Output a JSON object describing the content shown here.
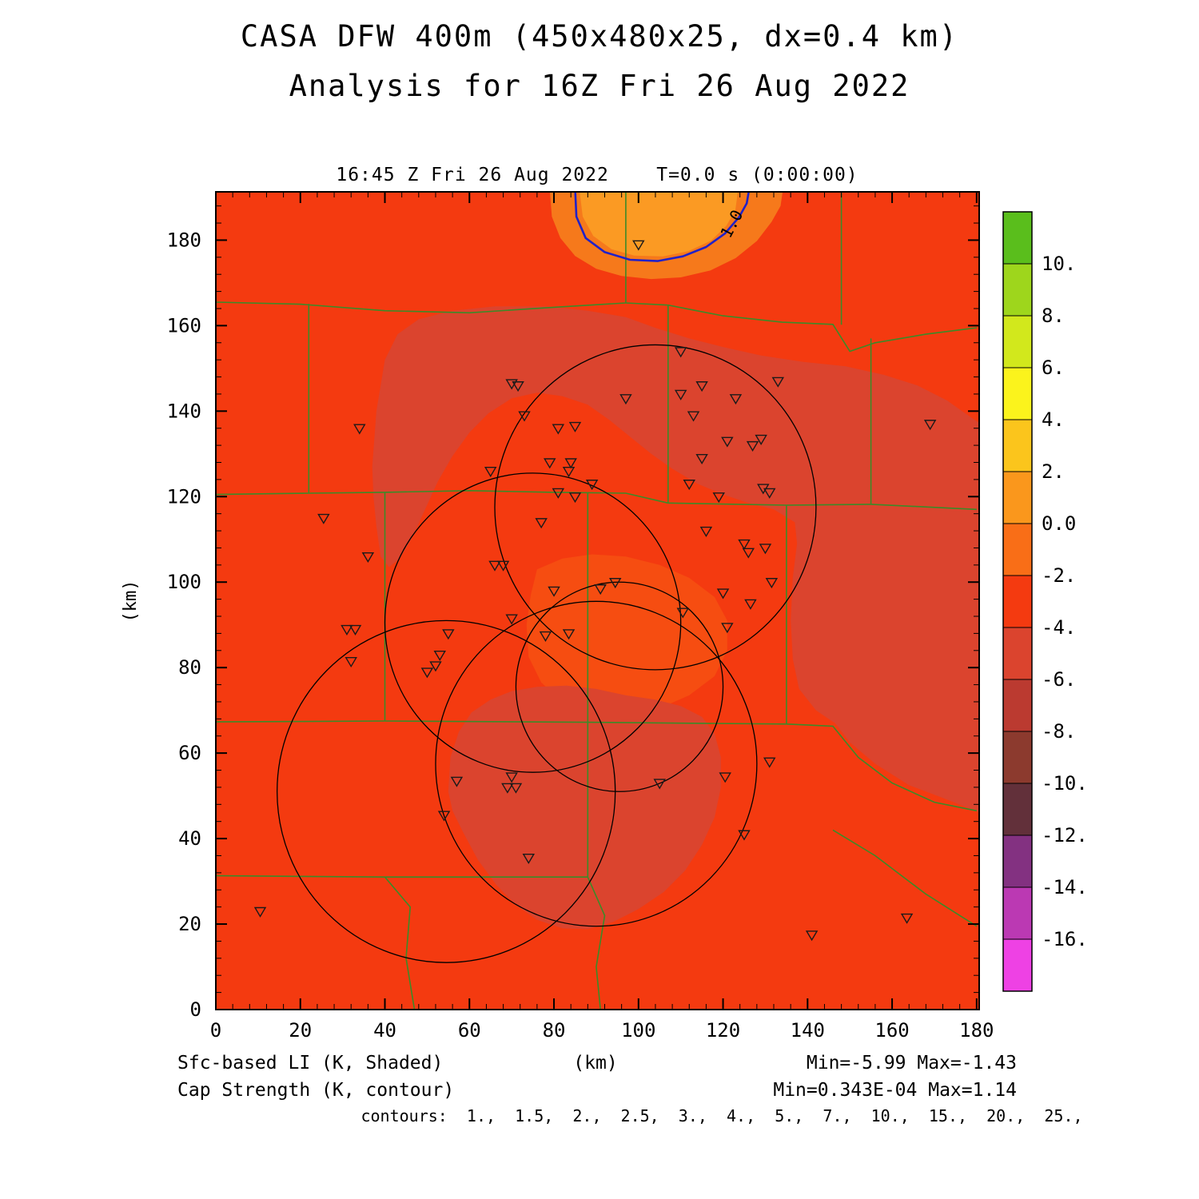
{
  "window": {
    "background": "#ffffff"
  },
  "chart_data": {
    "type": "heatmap",
    "title": "CASA DFW 400m (450x480x25, dx=0.4 km)",
    "subtitle": "Analysis for 16Z Fri 26 Aug 2022",
    "header": "16:45 Z Fri 26 Aug 2022    T=0.0 s (0:00:00)",
    "xlabel": "(km)",
    "ylabel": "(km)",
    "xlim": [
      0,
      180
    ],
    "ylim": [
      0,
      191
    ],
    "grid": false,
    "xticks": [
      0,
      20,
      40,
      60,
      80,
      100,
      120,
      140,
      160,
      180
    ],
    "yticks": [
      0,
      20,
      40,
      60,
      80,
      100,
      120,
      140,
      160,
      180
    ],
    "shaded_field": {
      "name": "Sfc-based LI (K, Shaded)",
      "min": -5.99,
      "max": -1.43
    },
    "contour_field": {
      "name": "Cap Strength (K, contour)",
      "min": "0.343E-04",
      "max": 1.14,
      "levels": [
        1.0,
        1.5,
        2.0,
        2.5,
        3.0,
        4.0,
        5.0,
        7.0,
        10.0,
        15.0,
        20.0,
        25.0
      ]
    },
    "footer": {
      "shaded": "Sfc-based LI (K, Shaded)",
      "shaded_minmax": "Min=-5.99 Max=-1.43",
      "contour": "Cap Strength (K, contour)",
      "contour_minmax": "Min=0.343E-04 Max=1.14",
      "contour_levels": "contours:  1.,  1.5,  2.,  2.5,  3.,  4.,  5.,  7.,  10.,  15.,  20.,  25.,"
    },
    "colorbar": {
      "position": "right",
      "labels": [
        "10.",
        "8.",
        "6.",
        "4.",
        "2.",
        "0.0",
        "-2.",
        "-4.",
        "-6.",
        "-8.",
        "-10.",
        "-12.",
        "-14.",
        "-16."
      ],
      "colors": [
        "#5ABE1C",
        "#9ED61C",
        "#D2E81C",
        "#FBF31C",
        "#FBC51C",
        "#FA971C",
        "#F96E17",
        "#F43A10",
        "#DB442E",
        "#BB3A30",
        "#8C3A2E",
        "#62303A",
        "#833181",
        "#BB39B3",
        "#EE41E4"
      ]
    },
    "colors": {
      "base": "#F43A10",
      "dark": "#DB442E",
      "center_warm": "#F64D11",
      "orange_outer": "#F6791B",
      "orange_inner": "#FB9A23",
      "county": "#3C8A28",
      "contour_blue": "#2121C8",
      "frame": "#000000"
    },
    "regions": {
      "dark_upper": [
        [
          37,
          127
        ],
        [
          38,
          140
        ],
        [
          40,
          152
        ],
        [
          43,
          158
        ],
        [
          48,
          161.5
        ],
        [
          56,
          163.5
        ],
        [
          66,
          164.5
        ],
        [
          78,
          164.5
        ],
        [
          88,
          163.5
        ],
        [
          97,
          162
        ],
        [
          104,
          159.5
        ],
        [
          112,
          157
        ],
        [
          120,
          155
        ],
        [
          129,
          153
        ],
        [
          139,
          151.5
        ],
        [
          149,
          150.5
        ],
        [
          158,
          148.5
        ],
        [
          166,
          146
        ],
        [
          173,
          142.5
        ],
        [
          178,
          139
        ],
        [
          181,
          137
        ],
        [
          181,
          46
        ],
        [
          172,
          49.5
        ],
        [
          164,
          52.5
        ],
        [
          156,
          57.5
        ],
        [
          150,
          62.5
        ],
        [
          146.5,
          67
        ],
        [
          142,
          70
        ],
        [
          138,
          75
        ],
        [
          136.5,
          82
        ],
        [
          136,
          91
        ],
        [
          136.5,
          101
        ],
        [
          137.5,
          109
        ],
        [
          137,
          114
        ],
        [
          132,
          117
        ],
        [
          126,
          118.5
        ],
        [
          120,
          120.5
        ],
        [
          114,
          123
        ],
        [
          108,
          126.5
        ],
        [
          103,
          130
        ],
        [
          98,
          134
        ],
        [
          93,
          138
        ],
        [
          88,
          141.5
        ],
        [
          82,
          143.5
        ],
        [
          76,
          144.3
        ],
        [
          70,
          143
        ],
        [
          64.5,
          139.5
        ],
        [
          60,
          135
        ],
        [
          56,
          129.5
        ],
        [
          52.5,
          123.5
        ],
        [
          49.5,
          117
        ],
        [
          46.5,
          110.5
        ],
        [
          43.5,
          105.5
        ],
        [
          41,
          103.5
        ],
        [
          39,
          106
        ],
        [
          38,
          113
        ],
        [
          37.3,
          120
        ]
      ],
      "dark_lower": [
        [
          55,
          51
        ],
        [
          55.5,
          59
        ],
        [
          57.5,
          65
        ],
        [
          60.5,
          69.5
        ],
        [
          65,
          72.5
        ],
        [
          70,
          74.5
        ],
        [
          76,
          75.5
        ],
        [
          83,
          75.8
        ],
        [
          90,
          75
        ],
        [
          97,
          73.5
        ],
        [
          104,
          72.5
        ],
        [
          110,
          71
        ],
        [
          115,
          68.5
        ],
        [
          118,
          64.5
        ],
        [
          119.5,
          59
        ],
        [
          119.5,
          52
        ],
        [
          118,
          45
        ],
        [
          115,
          38.5
        ],
        [
          111,
          32.5
        ],
        [
          106,
          27.5
        ],
        [
          100,
          23.5
        ],
        [
          94,
          20.5
        ],
        [
          88,
          18.8
        ],
        [
          82,
          19
        ],
        [
          76,
          21
        ],
        [
          71,
          24.5
        ],
        [
          66.5,
          29
        ],
        [
          62,
          35
        ],
        [
          58.5,
          41.5
        ],
        [
          56,
          46.5
        ]
      ],
      "center_warm": [
        [
          76,
          103
        ],
        [
          82,
          105.5
        ],
        [
          89,
          106.5
        ],
        [
          97,
          106
        ],
        [
          105,
          104
        ],
        [
          112,
          101
        ],
        [
          118,
          96.5
        ],
        [
          121,
          91
        ],
        [
          121,
          84
        ],
        [
          118,
          78
        ],
        [
          112,
          73.5
        ],
        [
          105,
          70.5
        ],
        [
          97,
          69
        ],
        [
          89,
          69.5
        ],
        [
          82,
          72
        ],
        [
          77,
          76.5
        ],
        [
          74,
          82.5
        ],
        [
          73.5,
          90
        ],
        [
          74.5,
          97
        ]
      ],
      "orange_outer": [
        [
          79,
          192
        ],
        [
          79.5,
          185.5
        ],
        [
          81.5,
          180.5
        ],
        [
          85,
          176.3
        ],
        [
          90,
          173.3
        ],
        [
          96,
          171.6
        ],
        [
          103,
          170.9
        ],
        [
          110,
          171.3
        ],
        [
          117,
          172.9
        ],
        [
          123,
          175.8
        ],
        [
          128,
          179.8
        ],
        [
          131.5,
          184.3
        ],
        [
          133.6,
          188
        ],
        [
          134.2,
          192
        ]
      ],
      "orange_inner": [
        [
          86,
          192
        ],
        [
          86.8,
          185.5
        ],
        [
          89.3,
          181
        ],
        [
          93.6,
          177.9
        ],
        [
          99,
          176.4
        ],
        [
          105.8,
          176.2
        ],
        [
          111.8,
          177.4
        ],
        [
          117.2,
          179.9
        ],
        [
          120.8,
          183.4
        ],
        [
          122.9,
          187
        ],
        [
          123.6,
          192
        ]
      ]
    },
    "county_borders": [
      [
        [
          0,
          165.5
        ],
        [
          20,
          165
        ],
        [
          40,
          163.5
        ],
        [
          60,
          163
        ],
        [
          80,
          164.3
        ],
        [
          97,
          165.3
        ]
      ],
      [
        [
          97,
          191.5
        ],
        [
          97,
          165.3
        ]
      ],
      [
        [
          97,
          165.3
        ],
        [
          107,
          164.8
        ]
      ],
      [
        [
          107,
          164.8
        ],
        [
          107,
          118.5
        ]
      ],
      [
        [
          107,
          164.8
        ],
        [
          120,
          162.3
        ],
        [
          134,
          160.8
        ],
        [
          146,
          160.3
        ],
        [
          150,
          154
        ],
        [
          156,
          156
        ],
        [
          168,
          158
        ],
        [
          180,
          159.5
        ]
      ],
      [
        [
          22,
          165.1
        ],
        [
          22,
          120.8
        ]
      ],
      [
        [
          0,
          120.5
        ],
        [
          22,
          120.8
        ],
        [
          40,
          121
        ],
        [
          60,
          121.4
        ],
        [
          80,
          121
        ],
        [
          97,
          120.8
        ],
        [
          107,
          118.5
        ]
      ],
      [
        [
          40,
          121
        ],
        [
          40,
          67.5
        ]
      ],
      [
        [
          0,
          67.3
        ],
        [
          40,
          67.5
        ],
        [
          88,
          67.2
        ],
        [
          110,
          67
        ],
        [
          135,
          66.8
        ]
      ],
      [
        [
          88,
          121
        ],
        [
          88,
          67.2
        ]
      ],
      [
        [
          107,
          118.5
        ],
        [
          135,
          118
        ],
        [
          155,
          118.2
        ]
      ],
      [
        [
          135,
          118
        ],
        [
          135,
          66.8
        ]
      ],
      [
        [
          155,
          157
        ],
        [
          155,
          118.2
        ]
      ],
      [
        [
          155,
          118.2
        ],
        [
          180,
          117
        ]
      ],
      [
        [
          88,
          67.2
        ],
        [
          88,
          31
        ]
      ],
      [
        [
          0,
          31.3
        ],
        [
          40,
          31
        ],
        [
          88,
          31
        ]
      ],
      [
        [
          40,
          31
        ],
        [
          46,
          24
        ],
        [
          45,
          12
        ],
        [
          47,
          0
        ]
      ],
      [
        [
          88,
          31
        ],
        [
          92,
          22
        ],
        [
          90,
          10
        ],
        [
          91,
          0
        ]
      ],
      [
        [
          135,
          66.8
        ],
        [
          146,
          66.3
        ],
        [
          152,
          59
        ],
        [
          160,
          53
        ],
        [
          170,
          48.5
        ],
        [
          180,
          46.5
        ]
      ],
      [
        [
          146,
          42
        ],
        [
          156,
          36
        ],
        [
          168,
          27
        ],
        [
          180,
          19.5
        ]
      ],
      [
        [
          148,
          191.5
        ],
        [
          148,
          160.2
        ]
      ]
    ],
    "radar_circles": [
      [
        104,
        117.5,
        38
      ],
      [
        75,
        90.5,
        35
      ],
      [
        90,
        57.5,
        38
      ],
      [
        54.5,
        51,
        40
      ],
      [
        95.5,
        75.5,
        24.5
      ]
    ],
    "stations": [
      [
        100,
        179
      ],
      [
        110,
        154
      ],
      [
        70,
        146.5
      ],
      [
        71.5,
        146
      ],
      [
        115,
        146
      ],
      [
        133,
        147
      ],
      [
        97,
        143
      ],
      [
        110,
        144
      ],
      [
        123,
        143
      ],
      [
        73,
        139
      ],
      [
        34,
        136
      ],
      [
        169,
        137
      ],
      [
        113,
        139
      ],
      [
        81,
        136
      ],
      [
        85,
        136.5
      ],
      [
        121,
        133
      ],
      [
        129,
        133.5
      ],
      [
        127,
        132
      ],
      [
        115,
        129
      ],
      [
        65,
        126
      ],
      [
        79,
        128
      ],
      [
        84,
        128
      ],
      [
        83.5,
        126
      ],
      [
        89,
        123
      ],
      [
        81,
        121
      ],
      [
        112,
        123
      ],
      [
        119,
        120
      ],
      [
        129.5,
        122
      ],
      [
        131,
        121
      ],
      [
        85,
        120
      ],
      [
        25.5,
        115
      ],
      [
        77,
        114
      ],
      [
        116,
        112
      ],
      [
        36,
        106
      ],
      [
        125,
        109
      ],
      [
        126,
        107
      ],
      [
        130,
        108
      ],
      [
        66,
        104
      ],
      [
        68,
        104
      ],
      [
        94.5,
        100
      ],
      [
        91,
        98.5
      ],
      [
        131.5,
        100
      ],
      [
        80,
        98
      ],
      [
        120,
        97.5
      ],
      [
        126.5,
        95
      ],
      [
        110.5,
        93
      ],
      [
        70,
        91.5
      ],
      [
        31,
        89
      ],
      [
        33,
        89
      ],
      [
        83.5,
        88
      ],
      [
        55,
        88
      ],
      [
        78,
        87.5
      ],
      [
        121,
        89.5
      ],
      [
        53,
        83
      ],
      [
        32,
        81.5
      ],
      [
        50,
        79
      ],
      [
        52,
        80.5
      ],
      [
        131,
        58
      ],
      [
        57,
        53.5
      ],
      [
        70,
        54.5
      ],
      [
        69,
        52
      ],
      [
        71,
        52
      ],
      [
        105,
        53
      ],
      [
        120.5,
        54.5
      ],
      [
        54,
        45.5
      ],
      [
        125,
        41
      ],
      [
        74,
        35.5
      ],
      [
        10.5,
        23
      ],
      [
        163.5,
        21.5
      ],
      [
        141,
        17.5
      ]
    ],
    "cap_contour": {
      "label": "1.0",
      "points": [
        [
          85,
          192
        ],
        [
          85.3,
          185.5
        ],
        [
          87.5,
          180.5
        ],
        [
          92,
          177.2
        ],
        [
          98,
          175.4
        ],
        [
          104.5,
          175.1
        ],
        [
          110.5,
          176.2
        ],
        [
          116,
          178.4
        ],
        [
          120.5,
          181.6
        ],
        [
          123.8,
          185.4
        ],
        [
          125.6,
          188.6
        ],
        [
          126.2,
          192
        ]
      ],
      "label_pos": [
        123.2,
        183.2
      ],
      "label_rotation": -62
    }
  }
}
